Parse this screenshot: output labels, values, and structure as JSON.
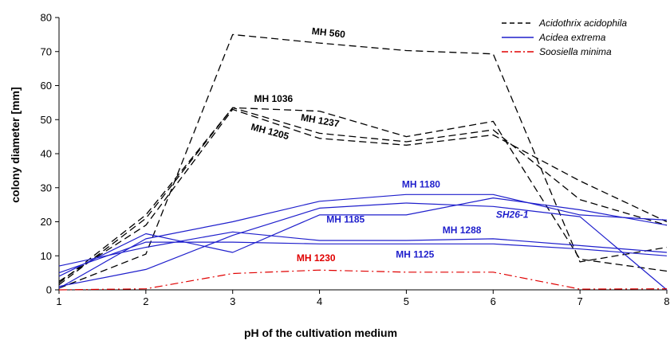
{
  "chart_data": {
    "type": "line",
    "xlabel": "pH of the cultivation medium",
    "ylabel": "colony diameter [mm]",
    "xlim": [
      1,
      8
    ],
    "ylim": [
      0,
      80
    ],
    "xticks": [
      1,
      2,
      3,
      4,
      5,
      6,
      7,
      8
    ],
    "yticks": [
      0,
      10,
      20,
      30,
      40,
      50,
      60,
      70,
      80
    ],
    "grid": false,
    "legend_position": "top-right",
    "colors": {
      "Acidothrix acidophila": "#000000",
      "Acidea extrema": "#1f1fcc",
      "Soosiella minima": "#e00000"
    },
    "legend": [
      {
        "label": "Acidothrix acidophila",
        "style": "dashed",
        "color": "#000000"
      },
      {
        "label": "Acidea extrema",
        "style": "solid",
        "color": "#1f1fcc"
      },
      {
        "label": "Soosiella minima",
        "style": "dashdot",
        "color": "#e00000"
      }
    ],
    "series": [
      {
        "group": "Acidothrix acidophila",
        "label": "MH 560",
        "x": [
          1,
          2,
          3,
          4,
          5,
          6,
          7,
          8
        ],
        "y": [
          0.5,
          10.5,
          75,
          72.5,
          70.3,
          69.3,
          8.2,
          12.5
        ]
      },
      {
        "group": "Acidothrix acidophila",
        "label": "MH 1036",
        "x": [
          1,
          2,
          3,
          4,
          5,
          6,
          7,
          8
        ],
        "y": [
          1.5,
          21,
          53.5,
          52.5,
          45,
          49.5,
          9,
          5.5
        ]
      },
      {
        "group": "Acidothrix acidophila",
        "label": "MH 1237",
        "x": [
          1,
          2,
          3,
          4,
          5,
          6,
          7,
          8
        ],
        "y": [
          2,
          22,
          53.5,
          46,
          43.5,
          47,
          26.5,
          19
        ]
      },
      {
        "group": "Acidothrix acidophila",
        "label": "MH 1205",
        "x": [
          1,
          2,
          3,
          4,
          5,
          6,
          7,
          8
        ],
        "y": [
          2.5,
          19,
          53,
          44.5,
          42.5,
          45.5,
          32,
          20
        ]
      },
      {
        "group": "Acidea extrema",
        "label": "MH 1180",
        "x": [
          1,
          2,
          3,
          4,
          5,
          6,
          7,
          8
        ],
        "y": [
          0.5,
          15,
          20,
          26,
          28,
          28,
          22,
          20.5
        ]
      },
      {
        "group": "Acidea extrema",
        "label": "MH 1185",
        "x": [
          1,
          2,
          3,
          4,
          5,
          6,
          7,
          8
        ],
        "y": [
          1,
          6,
          16,
          24,
          25.5,
          24.5,
          21.5,
          0
        ]
      },
      {
        "group": "Acidea extrema",
        "label": "SH26-1",
        "x": [
          1,
          2,
          3,
          4,
          5,
          6,
          7,
          8
        ],
        "y": [
          4,
          16.5,
          11,
          22,
          22,
          27,
          23.5,
          19
        ]
      },
      {
        "group": "Acidea extrema",
        "label": "MH 1288",
        "x": [
          1,
          2,
          3,
          4,
          5,
          6,
          7,
          8
        ],
        "y": [
          7,
          12.5,
          17,
          14.5,
          14.5,
          15,
          13,
          11
        ]
      },
      {
        "group": "Acidea extrema",
        "label": "MH 1125",
        "x": [
          1,
          2,
          3,
          4,
          5,
          6,
          7,
          8
        ],
        "y": [
          5,
          14,
          14,
          13.5,
          13.5,
          13.5,
          12,
          10
        ]
      },
      {
        "group": "Soosiella minima",
        "label": "MH 1230",
        "x": [
          1,
          2,
          3,
          4,
          5,
          6,
          7,
          8
        ],
        "y": [
          0,
          0.3,
          4.8,
          5.8,
          5.2,
          5.2,
          0.2,
          0.3
        ]
      }
    ],
    "annotations": [
      {
        "text": "MH 560",
        "x": 4.1,
        "y": 74.6,
        "angle": 6,
        "group": "Acidothrix acidophila"
      },
      {
        "text": "MH 1036",
        "x": 3.47,
        "y": 55.2,
        "angle": 0,
        "group": "Acidothrix acidophila"
      },
      {
        "text": "MH 1237",
        "x": 4.0,
        "y": 48.8,
        "angle": 10,
        "group": "Acidothrix acidophila"
      },
      {
        "text": "MH 1205",
        "x": 3.42,
        "y": 45.6,
        "angle": 15,
        "group": "Acidothrix acidophila"
      },
      {
        "text": "MH 1180",
        "x": 5.17,
        "y": 30.1,
        "angle": 0,
        "group": "Acidea extrema"
      },
      {
        "text": "MH 1185",
        "x": 4.3,
        "y": 19.8,
        "angle": 0,
        "group": "Acidea extrema"
      },
      {
        "text": "SH26-1",
        "x": 6.22,
        "y": 21.2,
        "angle": 0,
        "italic": true,
        "group": "Acidea extrema"
      },
      {
        "text": "MH 1288",
        "x": 5.64,
        "y": 16.6,
        "angle": 0,
        "group": "Acidea extrema"
      },
      {
        "text": "MH 1125",
        "x": 5.1,
        "y": 9.5,
        "angle": 0,
        "group": "Acidea extrema"
      },
      {
        "text": "MH 1230",
        "x": 3.96,
        "y": 8.4,
        "angle": 0,
        "group": "Soosiella minima"
      }
    ]
  }
}
